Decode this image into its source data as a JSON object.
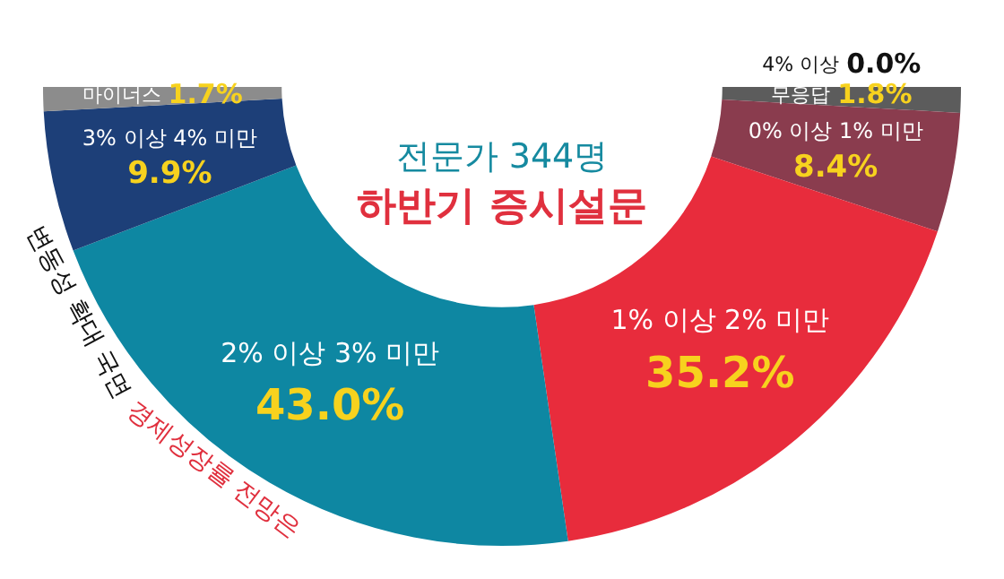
{
  "chart_data": {
    "type": "donut",
    "title": "전문가 344명",
    "subtitle": "하반기 증시설문",
    "categories": [
      "4% 이상",
      "무응답",
      "0% 이상 1% 미만",
      "1% 이상 2% 미만",
      "2% 이상 3% 미만",
      "3% 이상 4% 미만",
      "마이너스"
    ],
    "values": [
      0.0,
      1.8,
      8.4,
      35.2,
      43.0,
      9.9,
      1.7
    ],
    "value_labels": [
      "0.0%",
      "1.8%",
      "8.4%",
      "35.2%",
      "43.0%",
      "9.9%",
      "1.7%"
    ],
    "colors": [
      "#3a3a3a",
      "#5c5c5c",
      "#8a3c4e",
      "#e82c3c",
      "#0e87a2",
      "#1d3f78",
      "#8c8c8c"
    ],
    "annotations": [
      "변동성 확대 국면",
      "경제성장률 전망은"
    ],
    "legend": false
  }
}
